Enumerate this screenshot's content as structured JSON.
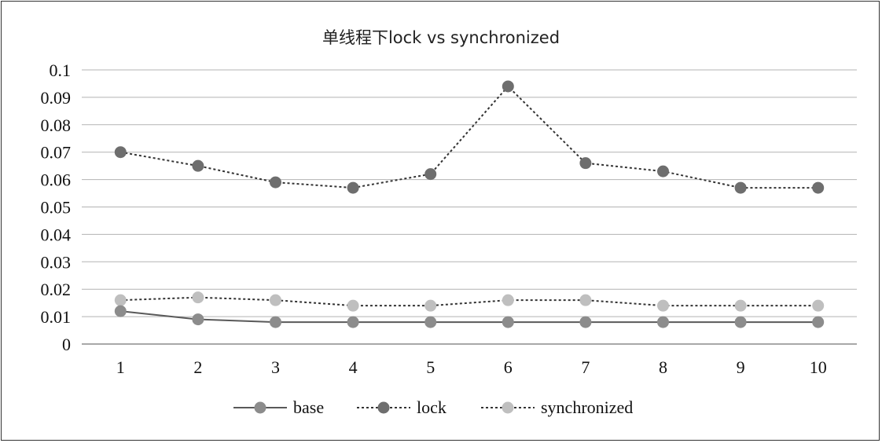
{
  "chart_data": {
    "type": "line",
    "title": "单线程下lock vs synchronized",
    "xlabel": "",
    "ylabel": "",
    "categories": [
      "1",
      "2",
      "3",
      "4",
      "5",
      "6",
      "7",
      "8",
      "9",
      "10"
    ],
    "ylim": [
      0,
      0.1
    ],
    "yticks": [
      "0",
      "0.01",
      "0.02",
      "0.03",
      "0.04",
      "0.05",
      "0.06",
      "0.07",
      "0.08",
      "0.09",
      "0.1"
    ],
    "grid": true,
    "legend_position": "bottom",
    "series": [
      {
        "name": "base",
        "values": [
          0.012,
          0.009,
          0.008,
          0.008,
          0.008,
          0.008,
          0.008,
          0.008,
          0.008,
          0.008
        ],
        "line_color": "#595959",
        "marker_color": "#8c8c8c",
        "dash": "solid"
      },
      {
        "name": "lock",
        "values": [
          0.07,
          0.065,
          0.059,
          0.057,
          0.062,
          0.094,
          0.066,
          0.063,
          0.057,
          0.057
        ],
        "line_color": "#333333",
        "marker_color": "#6e6e6e",
        "dash": "dotted"
      },
      {
        "name": "synchronized",
        "values": [
          0.016,
          0.017,
          0.016,
          0.014,
          0.014,
          0.016,
          0.016,
          0.014,
          0.014,
          0.014
        ],
        "line_color": "#333333",
        "marker_color": "#bfbfbf",
        "dash": "dotted"
      }
    ]
  }
}
